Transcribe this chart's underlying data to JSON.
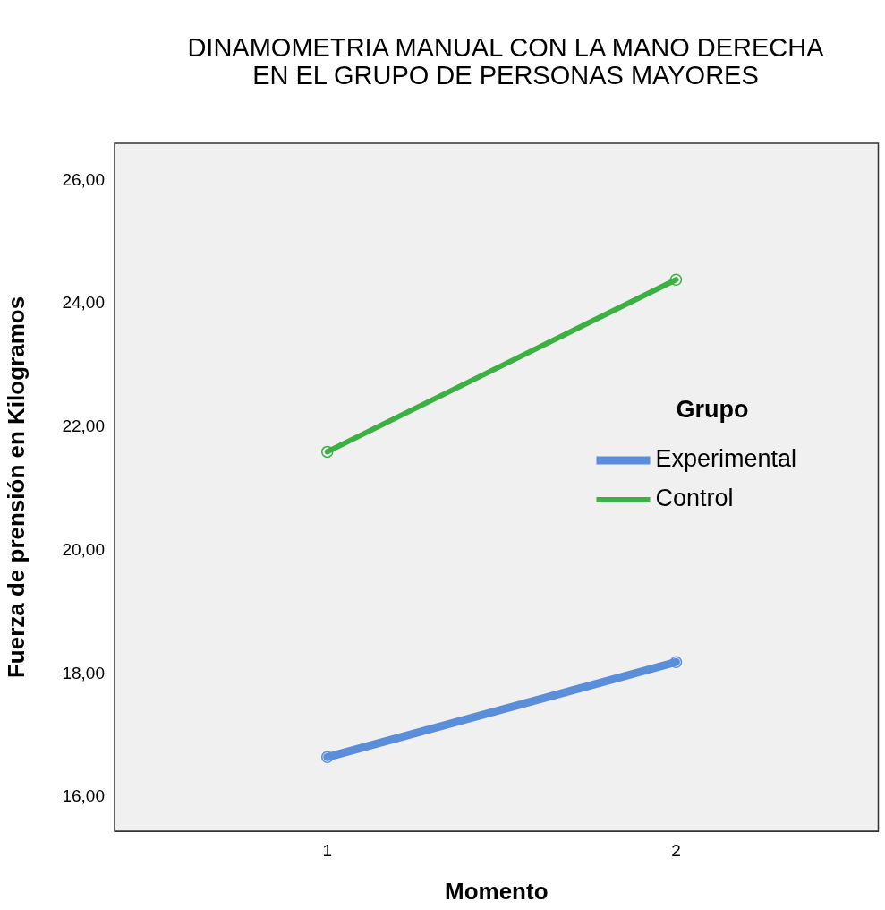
{
  "chart_data": {
    "type": "line",
    "title": "DINAMOMETRIA MANUAL CON LA MANO DERECHA EN EL GRUPO DE PERSONAS MAYORES",
    "xlabel": "Momento",
    "ylabel": "Fuerza de prensión en Kilogramos",
    "legend_title": "Grupo",
    "x": [
      1,
      2
    ],
    "series": [
      {
        "name": "Experimental",
        "color": "#5b8ed8",
        "values": [
          16.65,
          18.19
        ]
      },
      {
        "name": "Control",
        "color": "#3cb043",
        "values": [
          21.6,
          24.39
        ]
      }
    ],
    "xlim": [
      0.39,
      2.58
    ],
    "xticks": [
      1,
      2
    ],
    "ylim": [
      15.45,
      26.6
    ],
    "yticks": [
      {
        "value": 16,
        "label": "16,00"
      },
      {
        "value": 18,
        "label": "18,00"
      },
      {
        "value": 20,
        "label": "20,00"
      },
      {
        "value": 22,
        "label": "22,00"
      },
      {
        "value": 24,
        "label": "24,00"
      },
      {
        "value": 26,
        "label": "26,00"
      }
    ],
    "legend": "right",
    "marker": "circle",
    "line_style": "solid",
    "grid": false
  }
}
